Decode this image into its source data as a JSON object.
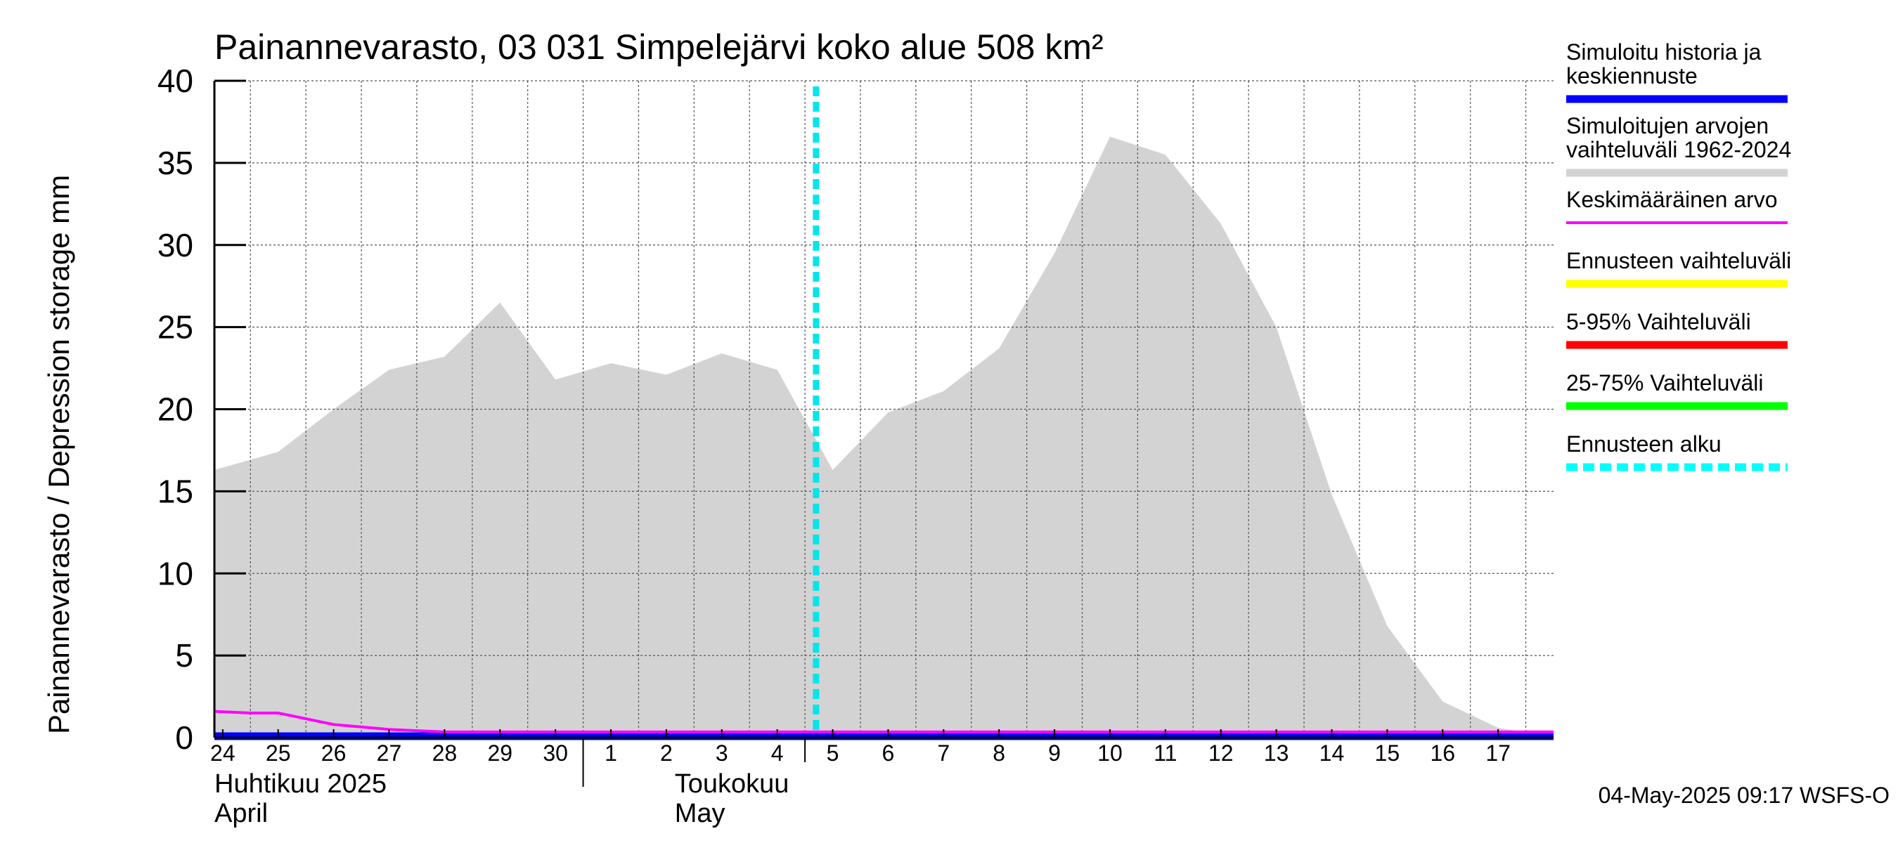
{
  "chart_data": {
    "type": "area",
    "title": "Painannevarasto, 03 031 Simpelejärvi koko alue 508 km²",
    "ylabel": "Painannevarasto / Depression storage    mm",
    "ylim": [
      0,
      40
    ],
    "yticks": [
      0,
      5,
      10,
      15,
      20,
      25,
      30,
      35,
      40
    ],
    "x_day_labels": [
      "24",
      "25",
      "26",
      "27",
      "28",
      "29",
      "30",
      "1",
      "2",
      "3",
      "4",
      "5",
      "6",
      "7",
      "8",
      "9",
      "10",
      "11",
      "12",
      "13",
      "14",
      "15",
      "16",
      "17"
    ],
    "month_labels": [
      {
        "fi": "Huhtikuu  2025",
        "en": "April"
      },
      {
        "fi": "Toukokuu",
        "en": "May"
      }
    ],
    "forecast_start": 10.7,
    "series": [
      {
        "name": "Simuloitujen arvojen vaihteluväli 1962-2024",
        "kind": "band",
        "color": "#d3d3d3",
        "points": [
          [
            -0.15,
            16.3
          ],
          [
            1,
            17.4
          ],
          [
            2,
            20.0
          ],
          [
            3,
            22.4
          ],
          [
            4,
            23.2
          ],
          [
            5,
            26.5
          ],
          [
            6,
            21.8
          ],
          [
            7,
            22.8
          ],
          [
            8,
            22.1
          ],
          [
            9,
            23.4
          ],
          [
            10,
            22.4
          ],
          [
            11,
            16.3
          ],
          [
            12,
            19.8
          ],
          [
            13,
            21.1
          ],
          [
            14,
            23.7
          ],
          [
            15,
            29.5
          ],
          [
            16,
            36.6
          ],
          [
            17,
            35.5
          ],
          [
            18,
            31.3
          ],
          [
            19,
            25.0
          ],
          [
            20,
            14.8
          ],
          [
            21,
            6.8
          ],
          [
            22,
            2.2
          ],
          [
            23,
            0.6
          ],
          [
            24,
            0.05
          ]
        ]
      },
      {
        "name": "Keskimääräinen arvo",
        "kind": "line",
        "color": "#ff00ff",
        "points": [
          [
            -0.15,
            1.3
          ],
          [
            0.5,
            1.2
          ],
          [
            1,
            1.2
          ],
          [
            2,
            0.5
          ],
          [
            3,
            0.2
          ],
          [
            4,
            0.05
          ],
          [
            6,
            0.05
          ],
          [
            10,
            0.05
          ],
          [
            24,
            0.05
          ]
        ]
      },
      {
        "name": "Simuloitu historia ja keskiennuste",
        "kind": "line",
        "color": "#0000ff",
        "points": [
          [
            -0.15,
            0.0
          ],
          [
            24,
            0.0
          ]
        ]
      }
    ],
    "legend": [
      {
        "label": "Simuloitu historia ja\nkeskiennuste",
        "color": "#0000ff",
        "style": "solid"
      },
      {
        "label": "Simuloitujen arvojen\nvaihteluväli 1962-2024",
        "color": "#d3d3d3",
        "style": "solid"
      },
      {
        "label": "Keskimääräinen arvo",
        "color": "#ff00ff",
        "style": "thin"
      },
      {
        "label": "Ennusteen vaihteluväli",
        "color": "#ffff00",
        "style": "solid"
      },
      {
        "label": "5-95% Vaihteluväli",
        "color": "#ff0000",
        "style": "solid"
      },
      {
        "label": "25-75% Vaihteluväli",
        "color": "#00ff00",
        "style": "solid"
      },
      {
        "label": "Ennusteen alku",
        "color": "#00ffff",
        "style": "dashed"
      }
    ],
    "legend_placement": "right",
    "grid": true,
    "timestamp": "04-May-2025 09:17 WSFS-O"
  }
}
